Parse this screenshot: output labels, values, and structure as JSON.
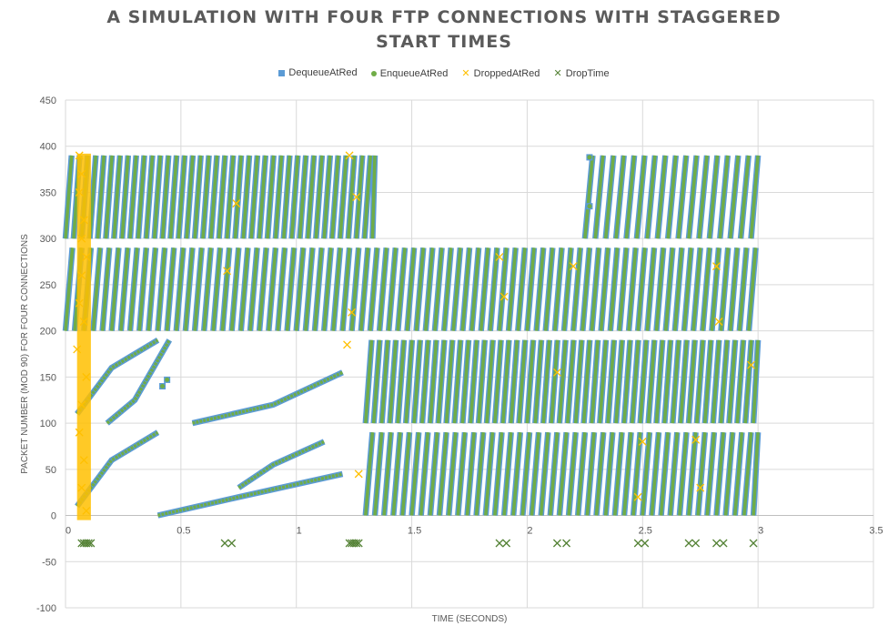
{
  "chart_data": {
    "type": "scatter",
    "title_lines": [
      "A SIMULATION WITH FOUR FTP CONNECTIONS WITH STAGGERED",
      "START TIMES"
    ],
    "xlabel": "TIME (SECONDS)",
    "ylabel": "PACKET NUMBER (MOD 90) FOR FOUR CONNECTIONS",
    "xlim": [
      0,
      3.5
    ],
    "ylim": [
      -100,
      450
    ],
    "x_ticks": [
      "0",
      "0.5",
      "1",
      "1.5",
      "2",
      "2.5",
      "3",
      "3.5"
    ],
    "y_ticks": [
      "-100",
      "-50",
      "0",
      "50",
      "100",
      "150",
      "200",
      "250",
      "300",
      "350",
      "400",
      "450"
    ],
    "grid": true,
    "legend_position": "top",
    "series": [
      {
        "name": "DequeueAtRed",
        "marker": "square",
        "color": "#5b9bd5"
      },
      {
        "name": "EnqueueAtRed",
        "marker": "circle",
        "color": "#70ad47"
      },
      {
        "name": "DroppedAtRed",
        "marker": "x",
        "color": "#ffc000"
      },
      {
        "name": "DropTime",
        "marker": "x",
        "color": "#548235"
      }
    ],
    "drop_times": [
      0.07,
      0.08,
      0.09,
      0.1,
      0.11,
      0.69,
      0.72,
      1.23,
      1.24,
      1.25,
      1.26,
      1.27,
      1.88,
      1.91,
      2.13,
      2.17,
      2.48,
      2.51,
      2.7,
      2.73,
      2.82,
      2.85,
      2.98
    ],
    "dropped_packets": [
      [
        0.06,
        390
      ],
      [
        0.07,
        370
      ],
      [
        0.06,
        350
      ],
      [
        0.08,
        320
      ],
      [
        0.07,
        300
      ],
      [
        0.09,
        280
      ],
      [
        0.07,
        260
      ],
      [
        0.06,
        230
      ],
      [
        0.08,
        210
      ],
      [
        0.05,
        180
      ],
      [
        0.09,
        150
      ],
      [
        0.07,
        120
      ],
      [
        0.06,
        90
      ],
      [
        0.08,
        60
      ],
      [
        0.07,
        30
      ],
      [
        0.09,
        5
      ],
      [
        0.7,
        265
      ],
      [
        0.74,
        338
      ],
      [
        1.23,
        390
      ],
      [
        1.26,
        345
      ],
      [
        1.22,
        185
      ],
      [
        1.24,
        220
      ],
      [
        1.27,
        45
      ],
      [
        1.88,
        280
      ],
      [
        1.9,
        237
      ],
      [
        2.13,
        155
      ],
      [
        2.2,
        270
      ],
      [
        2.48,
        20
      ],
      [
        2.5,
        80
      ],
      [
        2.73,
        82
      ],
      [
        2.75,
        30
      ],
      [
        2.82,
        270
      ],
      [
        2.83,
        210
      ],
      [
        2.97,
        163
      ]
    ],
    "staircase_bands": [
      {
        "t0": 0.0,
        "t1": 1.34,
        "y0": 300,
        "y1": 390,
        "period": 0.035
      },
      {
        "t0": 0.0,
        "t1": 3.0,
        "y0": 200,
        "y1": 290,
        "period": 0.04
      },
      {
        "t0": 1.3,
        "t1": 3.0,
        "y0": 100,
        "y1": 190,
        "period": 0.035
      },
      {
        "t0": 1.3,
        "t1": 3.0,
        "y0": 0,
        "y1": 90,
        "period": 0.04
      },
      {
        "t0": 2.25,
        "t1": 3.0,
        "y0": 300,
        "y1": 390,
        "period": 0.045
      }
    ],
    "slope_segments": [
      [
        [
          0.05,
          110
        ],
        [
          0.2,
          160
        ],
        [
          0.4,
          190
        ]
      ],
      [
        [
          0.05,
          10
        ],
        [
          0.2,
          60
        ],
        [
          0.4,
          90
        ]
      ],
      [
        [
          0.4,
          0
        ],
        [
          0.75,
          20
        ],
        [
          1.2,
          45
        ]
      ],
      [
        [
          0.55,
          100
        ],
        [
          0.9,
          120
        ],
        [
          1.2,
          155
        ]
      ],
      [
        [
          0.75,
          30
        ],
        [
          0.9,
          55
        ],
        [
          1.12,
          80
        ]
      ],
      [
        [
          0.18,
          100
        ],
        [
          0.3,
          125
        ],
        [
          0.45,
          190
        ]
      ]
    ],
    "isolated_points": [
      [
        2.27,
        388
      ],
      [
        2.27,
        335
      ],
      [
        0.44,
        147
      ],
      [
        0.42,
        140
      ]
    ]
  }
}
